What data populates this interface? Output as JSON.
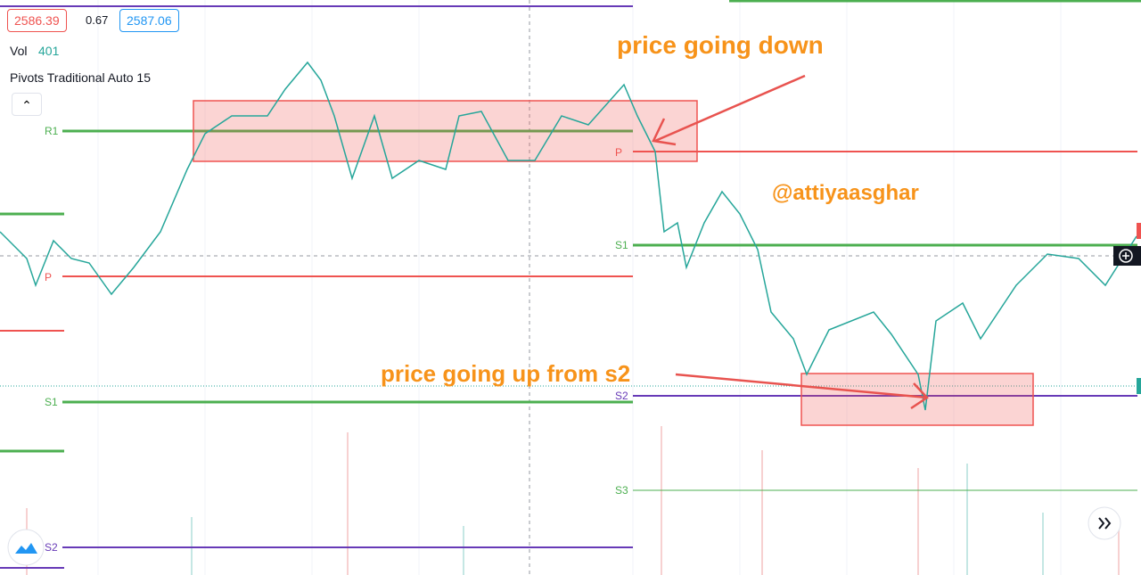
{
  "header": {
    "open": "2586.39",
    "change": "0.67",
    "close": "2587.06"
  },
  "volume": {
    "label": "Vol",
    "value": "401"
  },
  "indicator": "Pivots Traditional Auto 15",
  "pivots_left": [
    "R1",
    "P",
    "S1",
    "S2"
  ],
  "pivots_right": [
    "P",
    "S1",
    "S2",
    "S3"
  ],
  "annotations": [
    "price going down",
    "@attiyaasghar",
    "price going up from s2"
  ]
}
